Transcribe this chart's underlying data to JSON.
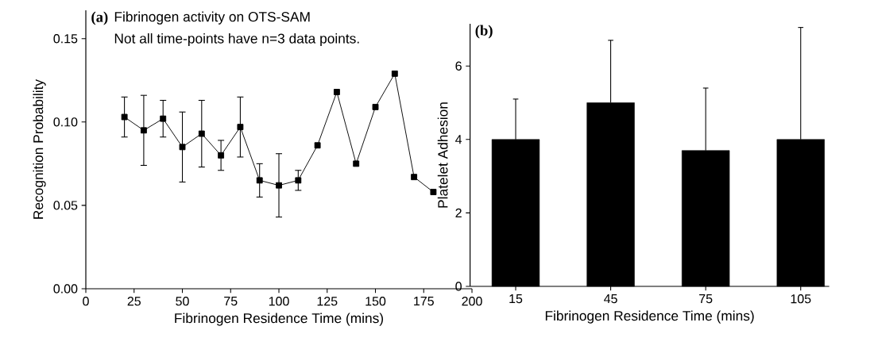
{
  "chart_data": [
    {
      "type": "line",
      "title": "(a)",
      "annotations": [
        "Fibrinogen activity on OTS-SAM",
        "Not all time-points have n=3 data points."
      ],
      "xlabel": "Fibrinogen Residence Time (mins)",
      "ylabel": "Recognition Probability",
      "x": [
        20,
        30,
        40,
        50,
        60,
        70,
        80,
        90,
        100,
        110,
        120,
        130,
        140,
        150,
        160,
        170,
        180
      ],
      "series": [
        {
          "color": "#000000",
          "values": [
            0.103,
            0.095,
            0.102,
            0.085,
            0.093,
            0.08,
            0.097,
            0.065,
            0.062,
            0.065,
            0.086,
            0.118,
            0.075,
            0.109,
            0.129,
            0.067,
            0.058
          ],
          "errors": [
            0.012,
            0.021,
            0.011,
            0.021,
            0.02,
            0.009,
            0.018,
            0.01,
            0.019,
            0.006,
            null,
            null,
            null,
            null,
            null,
            null,
            null
          ]
        }
      ],
      "xlim": [
        0,
        200
      ],
      "ylim": [
        0,
        0.167
      ],
      "xticks": [
        0,
        25,
        50,
        75,
        100,
        125,
        150,
        175,
        200
      ],
      "yticks": [
        {
          "value": 0,
          "label": "0.00"
        },
        {
          "value": 0.05,
          "label": "0.05"
        },
        {
          "value": 0.1,
          "label": "0.10"
        },
        {
          "value": 0.15,
          "label": "0.15"
        }
      ],
      "marker": "square",
      "line_style": "solid",
      "grid": false
    },
    {
      "type": "bar",
      "title": "(b)",
      "xlabel": "Fibrinogen Residence Time (mins)",
      "ylabel": "Platelet Adhesion",
      "categories": [
        "15",
        "45",
        "75",
        "105"
      ],
      "values": [
        4.0,
        5.0,
        3.7,
        4.0
      ],
      "color": "#000000",
      "errors": [
        [
          4.0,
          5.1
        ],
        [
          5.0,
          6.7
        ],
        [
          3.7,
          5.4
        ],
        [
          4.0,
          7.05
        ]
      ],
      "ylim": [
        0,
        7.15
      ],
      "yticks": [
        0,
        2,
        4,
        6
      ],
      "grid": false
    }
  ]
}
